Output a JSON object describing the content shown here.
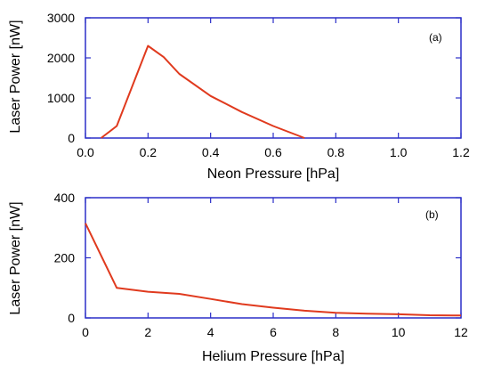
{
  "chart_data": [
    {
      "type": "line",
      "panel_label": "(a)",
      "xlabel": "Neon Pressure [hPa]",
      "ylabel": "Laser Power [nW]",
      "xlim": [
        0.0,
        1.2
      ],
      "ylim": [
        0,
        3000
      ],
      "xticks": [
        "0.0",
        "0.2",
        "0.4",
        "0.6",
        "0.8",
        "1.0",
        "1.2"
      ],
      "yticks": [
        "0",
        "1000",
        "2000",
        "3000"
      ],
      "xtick_values": [
        0.0,
        0.2,
        0.4,
        0.6,
        0.8,
        1.0,
        1.2
      ],
      "ytick_values": [
        0,
        1000,
        2000,
        3000
      ],
      "grid": false,
      "series": [
        {
          "color": "#e03a1e",
          "x": [
            0.05,
            0.1,
            0.2,
            0.25,
            0.3,
            0.4,
            0.5,
            0.6,
            0.7
          ],
          "y": [
            0,
            300,
            2300,
            2020,
            1600,
            1050,
            650,
            300,
            0
          ]
        }
      ]
    },
    {
      "type": "line",
      "panel_label": "(b)",
      "xlabel": "Helium Pressure [hPa]",
      "ylabel": "Laser Power [nW]",
      "xlim": [
        0,
        12
      ],
      "ylim": [
        0,
        400
      ],
      "xticks": [
        "0",
        "2",
        "4",
        "6",
        "8",
        "10",
        "12"
      ],
      "yticks": [
        "0",
        "200",
        "400"
      ],
      "xtick_values": [
        0,
        2,
        4,
        6,
        8,
        10,
        12
      ],
      "ytick_values": [
        0,
        200,
        400
      ],
      "grid": false,
      "series": [
        {
          "color": "#e03a1e",
          "x": [
            0,
            1,
            2,
            3,
            4,
            5,
            6,
            7,
            8,
            9,
            10,
            11,
            12
          ],
          "y": [
            315,
            100,
            87,
            80,
            63,
            46,
            34,
            24,
            17,
            14,
            12,
            9,
            8
          ]
        }
      ]
    }
  ],
  "colors": {
    "axis": "#2b2fc8",
    "series": "#e03a1e"
  }
}
